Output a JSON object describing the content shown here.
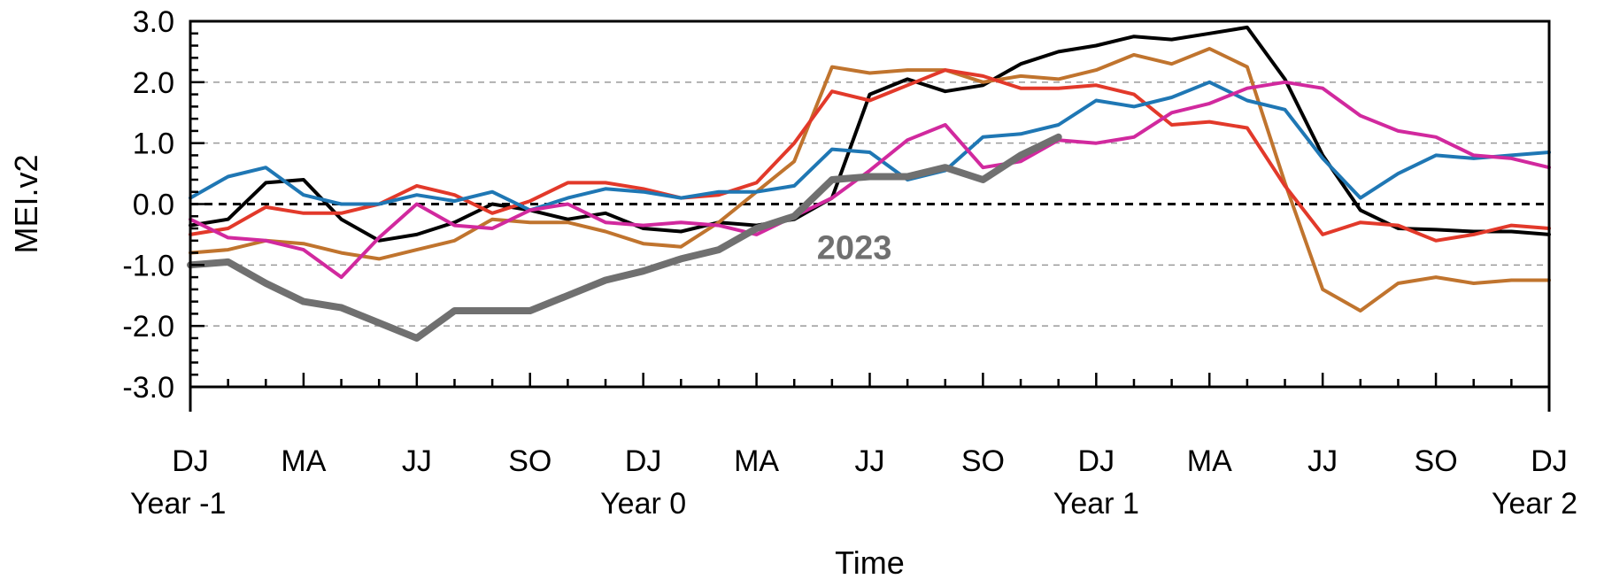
{
  "chart_data": {
    "type": "line",
    "xlabel": "Time",
    "ylabel": "MEI.v2",
    "ylim": [
      -3.0,
      3.0
    ],
    "xlim": [
      0,
      36
    ],
    "y_ticks": [
      "-3.0",
      "-2.0",
      "-1.0",
      "0.0",
      "1.0",
      "2.0",
      "3.0"
    ],
    "y_tick_values": [
      -3,
      -2,
      -1,
      0,
      1,
      2,
      3
    ],
    "x_ticks": [
      {
        "x": 0,
        "season": "DJ",
        "year": "Year -1"
      },
      {
        "x": 3,
        "season": "MA",
        "year": ""
      },
      {
        "x": 6,
        "season": "JJ",
        "year": ""
      },
      {
        "x": 9,
        "season": "SO",
        "year": ""
      },
      {
        "x": 12,
        "season": "DJ",
        "year": "Year 0"
      },
      {
        "x": 15,
        "season": "MA",
        "year": ""
      },
      {
        "x": 18,
        "season": "JJ",
        "year": ""
      },
      {
        "x": 21,
        "season": "SO",
        "year": ""
      },
      {
        "x": 24,
        "season": "DJ",
        "year": "Year 1"
      },
      {
        "x": 27,
        "season": "MA",
        "year": ""
      },
      {
        "x": 30,
        "season": "JJ",
        "year": ""
      },
      {
        "x": 33,
        "season": "SO",
        "year": ""
      },
      {
        "x": 36,
        "season": "DJ",
        "year": "Year 2"
      }
    ],
    "grid": "dashed horizontal at ±1, ±2; bold dashed zero line",
    "annotation": {
      "text": "2023",
      "x": 16.6,
      "y": -0.7,
      "color": "#707070"
    },
    "series": [
      {
        "color": "#000000",
        "x": [
          0,
          1,
          2,
          3,
          4,
          5,
          6,
          7,
          8,
          9,
          10,
          11,
          12,
          13,
          14,
          15,
          16,
          17,
          18,
          19,
          20,
          21,
          22,
          23,
          24,
          25,
          26,
          27,
          28,
          29,
          30,
          31,
          32,
          33,
          34,
          35,
          36
        ],
        "y": [
          -0.35,
          -0.25,
          0.35,
          0.4,
          -0.25,
          -0.6,
          -0.5,
          -0.3,
          0.0,
          -0.1,
          -0.25,
          -0.15,
          -0.4,
          -0.45,
          -0.3,
          -0.35,
          -0.25,
          0.1,
          1.8,
          2.05,
          1.85,
          1.95,
          2.3,
          2.5,
          2.6,
          2.75,
          2.7,
          2.8,
          2.9,
          2.05,
          0.8,
          -0.1,
          -0.4,
          -0.42,
          -0.45,
          -0.45,
          -0.5
        ],
        "width": 4
      },
      {
        "color": "#c0742e",
        "x": [
          0,
          1,
          2,
          3,
          4,
          5,
          6,
          7,
          8,
          9,
          10,
          11,
          12,
          13,
          14,
          15,
          16,
          17,
          18,
          19,
          20,
          21,
          22,
          23,
          24,
          25,
          26,
          27,
          28,
          29,
          30,
          31,
          32,
          33,
          34,
          35,
          36
        ],
        "y": [
          -0.8,
          -0.75,
          -0.6,
          -0.65,
          -0.8,
          -0.9,
          -0.75,
          -0.6,
          -0.25,
          -0.3,
          -0.3,
          -0.45,
          -0.65,
          -0.7,
          -0.3,
          0.2,
          0.7,
          2.25,
          2.15,
          2.2,
          2.2,
          2.0,
          2.1,
          2.05,
          2.2,
          2.45,
          2.3,
          2.55,
          2.25,
          0.35,
          -1.4,
          -1.75,
          -1.3,
          -1.2,
          -1.3,
          -1.25,
          -1.25
        ],
        "width": 4
      },
      {
        "color": "#e2392a",
        "x": [
          0,
          1,
          2,
          3,
          4,
          5,
          6,
          7,
          8,
          9,
          10,
          11,
          12,
          13,
          14,
          15,
          16,
          17,
          18,
          19,
          20,
          21,
          22,
          23,
          24,
          25,
          26,
          27,
          28,
          29,
          30,
          31,
          32,
          33,
          34,
          35,
          36
        ],
        "y": [
          -0.5,
          -0.4,
          -0.05,
          -0.15,
          -0.15,
          0.0,
          0.3,
          0.15,
          -0.15,
          0.05,
          0.35,
          0.35,
          0.25,
          0.1,
          0.15,
          0.35,
          1.0,
          1.85,
          1.7,
          1.95,
          2.2,
          2.1,
          1.9,
          1.9,
          1.95,
          1.8,
          1.3,
          1.35,
          1.25,
          0.3,
          -0.5,
          -0.3,
          -0.35,
          -0.6,
          -0.5,
          -0.35,
          -0.4
        ],
        "width": 4
      },
      {
        "color": "#1f77b4",
        "x": [
          0,
          1,
          2,
          3,
          4,
          5,
          6,
          7,
          8,
          9,
          10,
          11,
          12,
          13,
          14,
          15,
          16,
          17,
          18,
          19,
          20,
          21,
          22,
          23,
          24,
          25,
          26,
          27,
          28,
          29,
          30,
          31,
          32,
          33,
          34,
          35,
          36
        ],
        "y": [
          0.1,
          0.45,
          0.6,
          0.15,
          0.0,
          0.0,
          0.15,
          0.05,
          0.2,
          -0.1,
          0.1,
          0.25,
          0.2,
          0.1,
          0.2,
          0.2,
          0.3,
          0.9,
          0.85,
          0.4,
          0.55,
          1.1,
          1.15,
          1.3,
          1.7,
          1.6,
          1.75,
          2.0,
          1.7,
          1.55,
          0.75,
          0.1,
          0.5,
          0.8,
          0.75,
          0.8,
          0.85
        ],
        "width": 4
      },
      {
        "color": "#d1299e",
        "x": [
          0,
          1,
          2,
          3,
          4,
          5,
          6,
          7,
          8,
          9,
          10,
          11,
          12,
          13,
          14,
          15,
          16,
          17,
          18,
          19,
          20,
          21,
          22,
          23,
          24,
          25,
          26,
          27,
          28,
          29,
          30,
          31,
          32,
          33,
          34,
          35,
          36
        ],
        "y": [
          -0.25,
          -0.55,
          -0.6,
          -0.75,
          -1.2,
          -0.55,
          0.0,
          -0.35,
          -0.4,
          -0.1,
          0.0,
          -0.3,
          -0.35,
          -0.3,
          -0.35,
          -0.5,
          -0.2,
          0.1,
          0.55,
          1.05,
          1.3,
          0.6,
          0.7,
          1.05,
          1.0,
          1.1,
          1.5,
          1.65,
          1.9,
          2.0,
          1.9,
          1.45,
          1.2,
          1.1,
          0.8,
          0.75,
          0.6
        ],
        "width": 4
      },
      {
        "color": "#707070",
        "x": [
          0,
          1,
          2,
          3,
          4,
          5,
          6,
          7,
          8,
          9,
          10,
          11,
          12,
          13,
          14,
          15,
          16,
          17,
          18,
          19,
          20,
          21,
          22,
          23,
          24
        ],
        "y": [
          -1.0,
          -0.95,
          -1.3,
          -1.6,
          -1.7,
          -1.95,
          -2.2,
          -1.75,
          -1.75,
          -1.75,
          -1.5,
          -1.25,
          -1.1,
          -0.9,
          -0.75,
          -0.4,
          -0.2,
          0.4,
          0.45,
          0.45,
          0.6,
          0.4,
          0.8,
          1.1,
          null
        ],
        "width": 8
      }
    ]
  }
}
